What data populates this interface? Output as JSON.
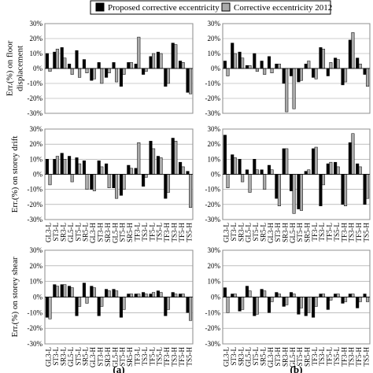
{
  "legend": {
    "series": [
      {
        "name": "Proposed corrective eccentricity",
        "color": "#000000"
      },
      {
        "name": "Corrective eccentricity 2012",
        "color": "#aaaaaa"
      }
    ]
  },
  "chart_data": [
    {
      "type": "bar",
      "ylabel": [
        "Err.(%) on floor",
        "displacement"
      ],
      "ylim": [
        -30,
        30
      ],
      "yticks": [
        {
          "value": 30,
          "label": "30%"
        },
        {
          "value": 20,
          "label": "20%"
        },
        {
          "value": 10,
          "label": "10%"
        },
        {
          "value": 0,
          "label": "0%"
        },
        {
          "value": -10,
          "label": "-10%"
        },
        {
          "value": -20,
          "label": "-20%"
        },
        {
          "value": -30,
          "label": "-30%"
        }
      ],
      "series": [
        {
          "values": [
            10,
            11,
            14,
            3,
            12,
            6,
            -8,
            4,
            -6,
            4,
            -12,
            4,
            3,
            -4,
            8,
            11,
            -12,
            17,
            5,
            -16
          ]
        },
        {
          "values": [
            -2,
            13,
            7,
            -4,
            -6,
            -3,
            -7,
            -10,
            -3,
            -9,
            -4,
            4,
            21,
            -2,
            10,
            10,
            -10,
            16,
            4,
            -17
          ]
        }
      ]
    },
    {
      "type": "bar",
      "ylim": [
        -30,
        30
      ],
      "yticks": [
        {
          "value": 30,
          "label": "30%"
        },
        {
          "value": 20,
          "label": "20%"
        },
        {
          "value": 10,
          "label": "10%"
        },
        {
          "value": 0,
          "label": "0%"
        },
        {
          "value": -10,
          "label": "-10%"
        },
        {
          "value": -20,
          "label": "-20%"
        },
        {
          "value": -30,
          "label": "-30%"
        }
      ],
      "series": [
        {
          "values": [
            5,
            17,
            11,
            2,
            10,
            5,
            8,
            3,
            -10,
            -5,
            -9,
            3,
            -6,
            14,
            -5,
            7,
            -11,
            19,
            7,
            -4
          ]
        },
        {
          "values": [
            -5,
            10,
            7,
            2,
            -2,
            -4,
            -3,
            3,
            -29,
            -27,
            -8,
            5,
            -7,
            13,
            4,
            6,
            -9,
            24,
            3,
            -12
          ]
        }
      ]
    },
    {
      "type": "bar",
      "ylabel": [
        "Err.(%) on storey drift"
      ],
      "ylim": [
        -30,
        30
      ],
      "yticks": [
        {
          "value": 30,
          "label": "30%"
        },
        {
          "value": 20,
          "label": "20%"
        },
        {
          "value": 10,
          "label": "10%"
        },
        {
          "value": 0,
          "label": "0%"
        },
        {
          "value": -10,
          "label": "-10%"
        },
        {
          "value": -20,
          "label": "-20%"
        },
        {
          "value": -30,
          "label": "-30%"
        }
      ],
      "categories": [
        "GL3-L",
        "ST3-L",
        "SR3-L",
        "GL5-L",
        "ST5-L",
        "SR5-L",
        "GL3-H",
        "ST3-H",
        "SR3-H",
        "GL5-H",
        "ST5-H",
        "SR5-H",
        "TF3-L",
        "TS3-L",
        "TF5-L",
        "TS5-L",
        "TF3-H",
        "TS3-H",
        "TF5-H",
        "TS5-H"
      ],
      "series": [
        {
          "values": [
            10,
            10,
            14,
            12,
            11,
            9,
            -10,
            9,
            7,
            -9,
            -14,
            6,
            4,
            -8,
            22,
            12,
            -16,
            24,
            8,
            2
          ]
        },
        {
          "values": [
            -7,
            12,
            10,
            -5,
            7,
            -10,
            -11,
            5,
            -9,
            -16,
            -10,
            4,
            21,
            -2,
            17,
            11,
            -12,
            22,
            5,
            -22
          ]
        }
      ]
    },
    {
      "type": "bar",
      "ylim": [
        -30,
        30
      ],
      "yticks": [
        {
          "value": 30,
          "label": "30%"
        },
        {
          "value": 20,
          "label": "20%"
        },
        {
          "value": 10,
          "label": "10%"
        },
        {
          "value": 0,
          "label": "0%"
        },
        {
          "value": -10,
          "label": "-10%"
        },
        {
          "value": -20,
          "label": "-20%"
        },
        {
          "value": -30,
          "label": "-30%"
        }
      ],
      "categories": [
        "GL3-L",
        "ST3-L",
        "SR3-L",
        "GL5-L",
        "ST5-L",
        "SR5-L",
        "GL3-H",
        "ST3-H",
        "SR3-H",
        "GL5-H",
        "ST5-H",
        "SR5-H",
        "TF3-L",
        "TS3-L",
        "TF5-L",
        "TS5-L",
        "TF3-H",
        "TS3-H",
        "TF5-H",
        "TS5-H"
      ],
      "series": [
        {
          "values": [
            26,
            13,
            10,
            3,
            10,
            3,
            6,
            -16,
            17,
            -11,
            -23,
            2,
            17,
            -21,
            7,
            8,
            -20,
            21,
            7,
            -20
          ]
        },
        {
          "values": [
            -9,
            11,
            -5,
            -12,
            3,
            -10,
            3,
            -21,
            17,
            -26,
            -24,
            3,
            18,
            -7,
            8,
            5,
            -21,
            27,
            5,
            -16
          ]
        }
      ]
    },
    {
      "type": "bar",
      "ylabel": [
        "Err.(%) on storey shear"
      ],
      "ylim": [
        -30,
        30
      ],
      "caption": "(a)",
      "yticks": [
        {
          "value": 30,
          "label": "30%"
        },
        {
          "value": 20,
          "label": "20%"
        },
        {
          "value": 10,
          "label": "10%"
        },
        {
          "value": 0,
          "label": "0%"
        },
        {
          "value": -10,
          "label": "-10%"
        },
        {
          "value": -20,
          "label": "-20%"
        },
        {
          "value": -30,
          "label": "-30%"
        }
      ],
      "categories": [
        "GL3-L",
        "ST3-L",
        "SR3-L",
        "GL5-L",
        "ST5-L",
        "SR5-L",
        "GL3-H",
        "ST3-H",
        "SR3-H",
        "GL5-H",
        "ST5-H",
        "SR5-H",
        "TF3-L",
        "TS3-L",
        "TF5-L",
        "TS5-L",
        "TF3-H",
        "TS3-H",
        "TF5-H",
        "TS5-H"
      ],
      "series": [
        {
          "values": [
            -13,
            8,
            8,
            7,
            -12,
            9,
            7,
            -12,
            5,
            5,
            -13,
            2,
            2,
            3,
            2,
            4,
            -12,
            3,
            2,
            -10
          ]
        },
        {
          "values": [
            -14,
            7,
            8,
            6,
            -6,
            -4,
            6,
            -6,
            4,
            4,
            -8,
            2,
            2,
            2,
            3,
            3,
            -8,
            2,
            2,
            -15
          ]
        }
      ]
    },
    {
      "type": "bar",
      "ylim": [
        -30,
        30
      ],
      "caption": "(b)",
      "yticks": [
        {
          "value": 30,
          "label": "30%"
        },
        {
          "value": 20,
          "label": "20%"
        },
        {
          "value": 10,
          "label": "10%"
        },
        {
          "value": 0,
          "label": "0%"
        },
        {
          "value": -10,
          "label": "-10%"
        },
        {
          "value": -20,
          "label": "-20%"
        },
        {
          "value": -30,
          "label": "-30%"
        }
      ],
      "categories": [
        "GL3-L",
        "ST3-L",
        "SR3-L",
        "GL5-L",
        "ST5-L",
        "SR5-L",
        "GL3-H",
        "ST3-H",
        "SR3-H",
        "GL5-H",
        "ST5-H",
        "SR5-H",
        "TF3-L",
        "TS3-L",
        "TF5-L",
        "TS5-L",
        "TF3-H",
        "TS3-H",
        "TF5-H",
        "TS5-H"
      ],
      "series": [
        {
          "values": [
            6,
            2,
            -9,
            7,
            -12,
            5,
            -10,
            3,
            -6,
            3,
            -11,
            -12,
            -13,
            2,
            -8,
            2,
            -4,
            2,
            -7,
            2
          ]
        },
        {
          "values": [
            -10,
            2,
            -8,
            4,
            -11,
            4,
            -3,
            2,
            -5,
            2,
            -7,
            -10,
            -6,
            2,
            -2,
            2,
            -3,
            2,
            -3,
            -3
          ]
        }
      ]
    }
  ]
}
